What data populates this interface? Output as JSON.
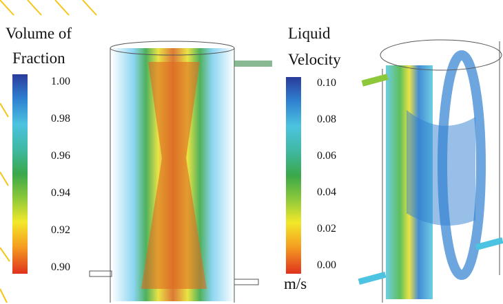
{
  "left_legend": {
    "title_lines": [
      "Volume of",
      "Fraction"
    ],
    "labels": [
      "1.00",
      "0.98",
      "0.96",
      "0.94",
      "0.92",
      "0.90"
    ]
  },
  "right_legend": {
    "title_lines": [
      "Liquid",
      "Velocity"
    ],
    "labels": [
      "0.10",
      "0.08",
      "0.06",
      "0.04",
      "0.02",
      "0.00"
    ],
    "unit": "m/s"
  }
}
